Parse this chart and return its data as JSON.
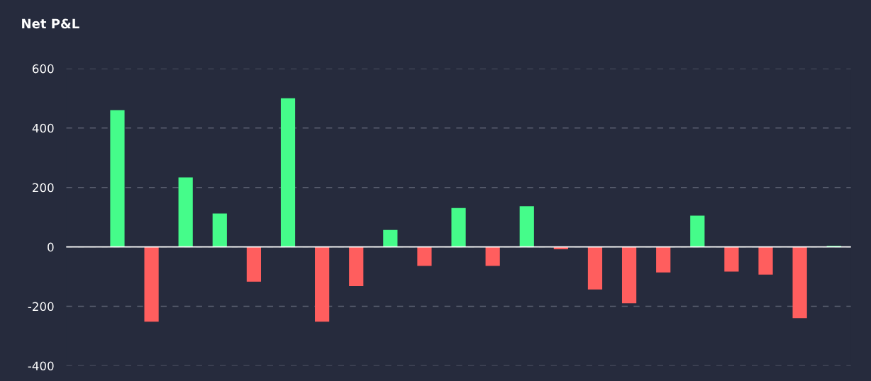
{
  "chart_data": {
    "type": "bar",
    "title": "Net P&L",
    "categories": [
      null,
      null,
      null,
      null,
      null,
      null,
      null,
      null,
      null,
      null,
      null,
      null,
      null,
      null,
      null,
      null,
      null,
      null,
      null,
      null,
      null,
      null,
      null
    ],
    "values": [
      0,
      460,
      -252,
      234,
      112,
      -117,
      500,
      -252,
      -132,
      57,
      -64,
      131,
      -64,
      137,
      -8,
      -143,
      -190,
      -86,
      105,
      -83,
      -93,
      -240,
      4
    ],
    "colors": [
      "#45fc8a",
      "#45fc8a",
      "#ff5e5e",
      "#45fc8a",
      "#45fc8a",
      "#ff5e5e",
      "#45fc8a",
      "#ff5e5e",
      "#ff5e5e",
      "#45fc8a",
      "#ff5e5e",
      "#45fc8a",
      "#ff5e5e",
      "#45fc8a",
      "#ff5e5e",
      "#ff5e5e",
      "#ff5e5e",
      "#ff5e5e",
      "#45fc8a",
      "#ff5e5e",
      "#ff5e5e",
      "#ff5e5e",
      "#45fc8a"
    ],
    "ylim": [
      -400,
      600
    ],
    "yticks": [
      -400,
      -200,
      0,
      200,
      400,
      600
    ],
    "grid": "y",
    "legend": false,
    "ref_lines": [
      {
        "axis": "y",
        "value": 0,
        "color": "#ffffff",
        "line_style": "solid"
      }
    ]
  }
}
